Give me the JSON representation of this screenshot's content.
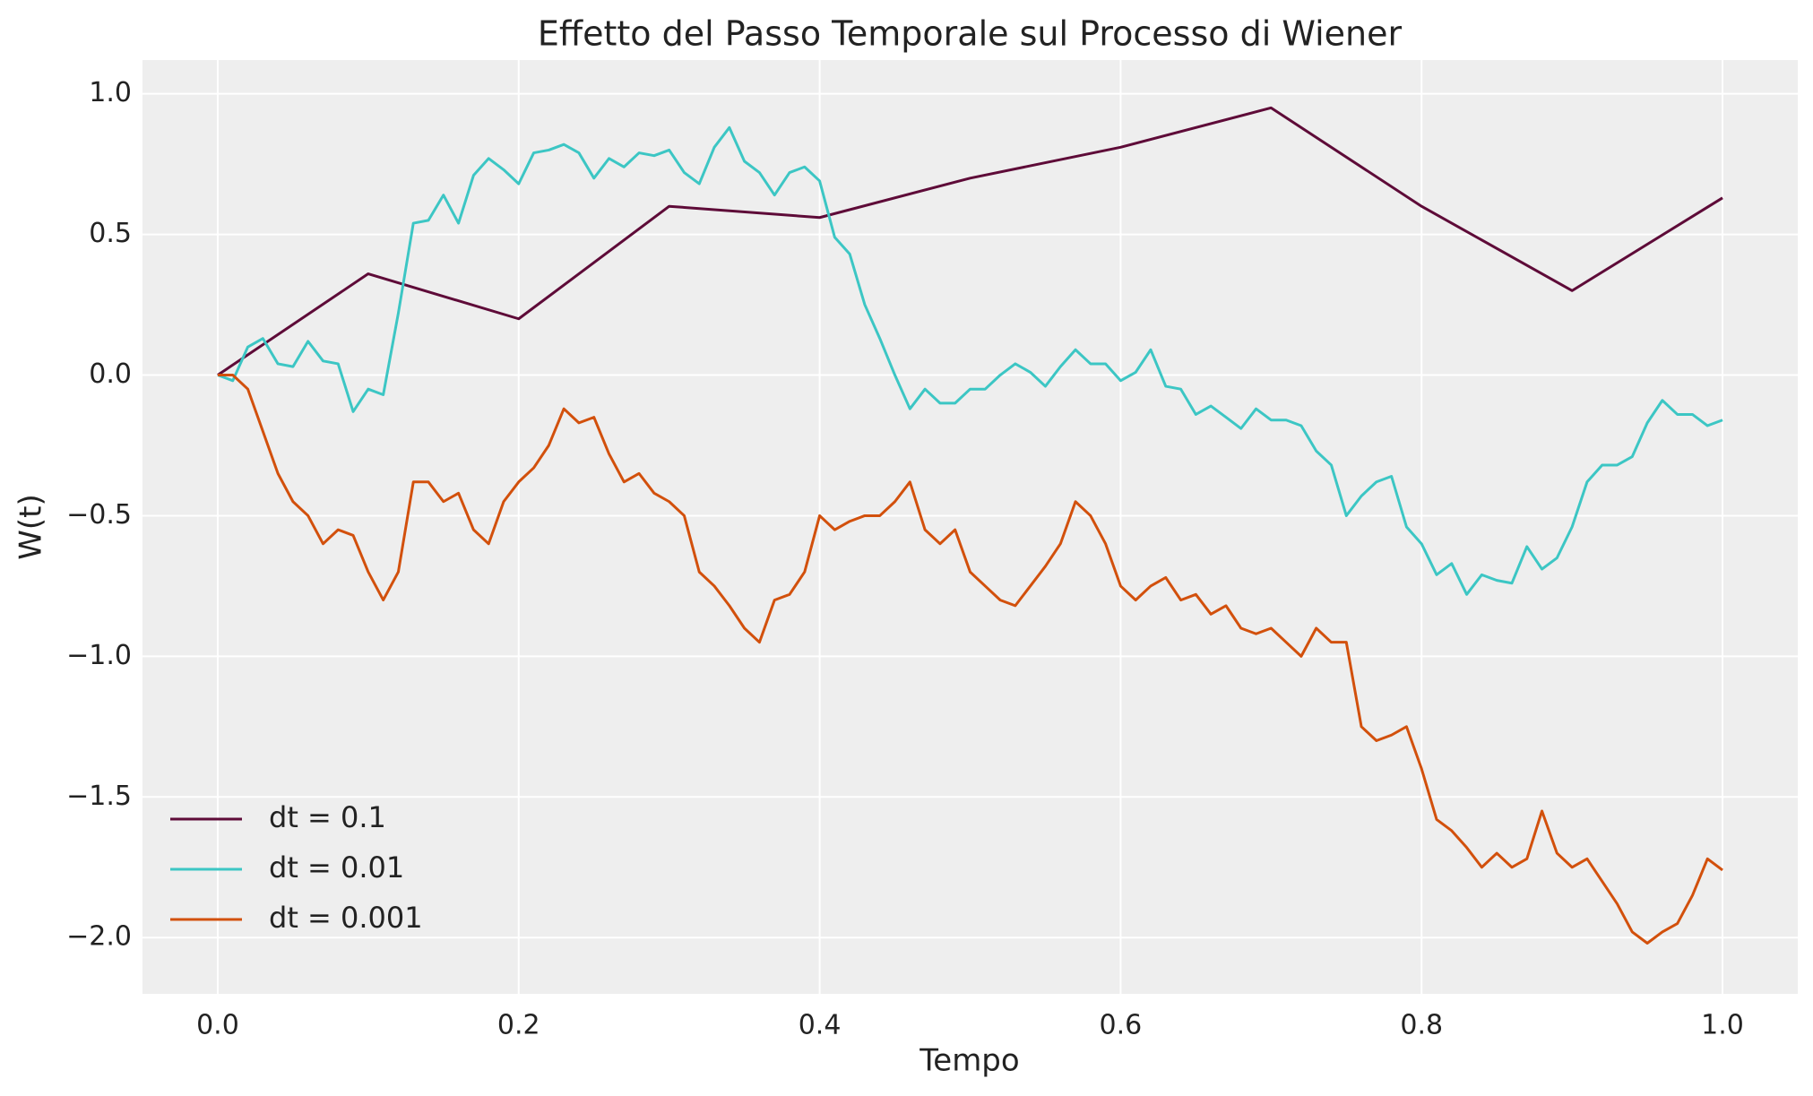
{
  "chart_data": {
    "type": "line",
    "title": "Effetto del Passo Temporale sul Processo di Wiener",
    "x_label": "Tempo",
    "y_label": "W(t)",
    "xlim": [
      -0.05,
      1.05
    ],
    "ylim": [
      -2.2,
      1.12
    ],
    "xticks": [
      {
        "value": 0,
        "label": "0.0"
      },
      0.2,
      0.4,
      0.6,
      0.8,
      {
        "value": 1,
        "label": "1.0"
      }
    ],
    "yticks": [
      {
        "value": 1,
        "label": "1.0"
      },
      0.5,
      {
        "value": 0,
        "label": "0.0"
      },
      {
        "value": -0.5,
        "label": "−0.5"
      },
      {
        "value": -1,
        "label": "−1.0"
      },
      {
        "value": -1.5,
        "label": "−1.5"
      },
      {
        "value": -2,
        "label": "−2.0"
      }
    ],
    "grid": true,
    "legend_position": "lower left",
    "series": [
      {
        "name": "dt = 0.1",
        "color": "#5e0b38",
        "x": [
          0,
          0.1,
          0.2,
          0.3,
          0.4,
          0.5,
          0.6,
          0.7,
          0.8,
          0.9,
          1
        ],
        "values": [
          0,
          0.36,
          0.2,
          0.6,
          0.56,
          0.7,
          0.81,
          0.95,
          0.6,
          0.3,
          0.63
        ]
      },
      {
        "name": "dt = 0.01",
        "color": "#3cc6c4",
        "x": [
          0,
          0.01,
          0.02,
          0.03,
          0.04,
          0.05,
          0.06,
          0.07,
          0.08,
          0.09,
          0.1,
          0.11,
          0.12,
          0.13,
          0.14,
          0.15,
          0.16,
          0.17,
          0.18,
          0.19,
          0.2,
          0.21,
          0.22,
          0.23,
          0.24,
          0.25,
          0.26,
          0.27,
          0.28,
          0.29,
          0.3,
          0.31,
          0.32,
          0.33,
          0.34,
          0.35,
          0.36,
          0.37,
          0.38,
          0.39,
          0.4,
          0.41,
          0.42,
          0.43,
          0.44,
          0.45,
          0.46,
          0.47,
          0.48,
          0.49,
          0.5,
          0.51,
          0.52,
          0.53,
          0.54,
          0.55,
          0.56,
          0.57,
          0.58,
          0.59,
          0.6,
          0.61,
          0.62,
          0.63,
          0.64,
          0.65,
          0.66,
          0.67,
          0.68,
          0.69,
          0.7,
          0.71,
          0.72,
          0.73,
          0.74,
          0.75,
          0.76,
          0.77,
          0.78,
          0.79,
          0.8,
          0.81,
          0.82,
          0.83,
          0.84,
          0.85,
          0.86,
          0.87,
          0.88,
          0.89,
          0.9,
          0.91,
          0.92,
          0.93,
          0.94,
          0.95,
          0.96,
          0.97,
          0.98,
          0.99,
          1
        ],
        "values": [
          0,
          -0.02,
          0.1,
          0.13,
          0.04,
          0.03,
          0.12,
          0.05,
          0.04,
          -0.13,
          -0.05,
          -0.07,
          0.22,
          0.54,
          0.55,
          0.64,
          0.54,
          0.71,
          0.77,
          0.73,
          0.68,
          0.79,
          0.8,
          0.82,
          0.79,
          0.7,
          0.77,
          0.74,
          0.79,
          0.78,
          0.8,
          0.72,
          0.68,
          0.81,
          0.88,
          0.76,
          0.72,
          0.64,
          0.72,
          0.74,
          0.69,
          0.49,
          0.43,
          0.25,
          0.13,
          0,
          -0.12,
          -0.05,
          -0.1,
          -0.1,
          -0.05,
          -0.05,
          0,
          0.04,
          0.01,
          -0.04,
          0.03,
          0.09,
          0.04,
          0.04,
          -0.02,
          0.01,
          0.09,
          -0.04,
          -0.05,
          -0.14,
          -0.11,
          -0.15,
          -0.19,
          -0.12,
          -0.16,
          -0.16,
          -0.18,
          -0.27,
          -0.32,
          -0.5,
          -0.43,
          -0.38,
          -0.36,
          -0.54,
          -0.6,
          -0.71,
          -0.67,
          -0.78,
          -0.71,
          -0.73,
          -0.74,
          -0.61,
          -0.69,
          -0.65,
          -0.54,
          -0.38,
          -0.32,
          -0.32,
          -0.29,
          -0.17,
          -0.09,
          -0.14,
          -0.14,
          -0.18,
          -0.16
        ]
      },
      {
        "name": "dt = 0.001",
        "color": "#d2500c",
        "x": [
          0,
          0.01,
          0.02,
          0.03,
          0.04,
          0.05,
          0.06,
          0.07,
          0.08,
          0.09,
          0.1,
          0.11,
          0.12,
          0.13,
          0.14,
          0.15,
          0.16,
          0.17,
          0.18,
          0.19,
          0.2,
          0.21,
          0.22,
          0.23,
          0.24,
          0.25,
          0.26,
          0.27,
          0.28,
          0.29,
          0.3,
          0.31,
          0.32,
          0.33,
          0.34,
          0.35,
          0.36,
          0.37,
          0.38,
          0.39,
          0.4,
          0.41,
          0.42,
          0.43,
          0.44,
          0.45,
          0.46,
          0.47,
          0.48,
          0.49,
          0.5,
          0.51,
          0.52,
          0.53,
          0.54,
          0.55,
          0.56,
          0.57,
          0.58,
          0.59,
          0.6,
          0.61,
          0.62,
          0.63,
          0.64,
          0.65,
          0.66,
          0.67,
          0.68,
          0.69,
          0.7,
          0.71,
          0.72,
          0.73,
          0.74,
          0.75,
          0.76,
          0.77,
          0.78,
          0.79,
          0.8,
          0.81,
          0.82,
          0.83,
          0.84,
          0.85,
          0.86,
          0.87,
          0.88,
          0.89,
          0.9,
          0.91,
          0.92,
          0.93,
          0.94,
          0.95,
          0.96,
          0.97,
          0.98,
          0.99,
          1
        ],
        "values": [
          0,
          0,
          -0.05,
          -0.2,
          -0.35,
          -0.45,
          -0.5,
          -0.6,
          -0.55,
          -0.57,
          -0.7,
          -0.8,
          -0.7,
          -0.38,
          -0.38,
          -0.45,
          -0.42,
          -0.55,
          -0.6,
          -0.45,
          -0.38,
          -0.33,
          -0.25,
          -0.12,
          -0.17,
          -0.15,
          -0.28,
          -0.38,
          -0.35,
          -0.42,
          -0.45,
          -0.5,
          -0.7,
          -0.75,
          -0.82,
          -0.9,
          -0.95,
          -0.8,
          -0.78,
          -0.7,
          -0.5,
          -0.55,
          -0.52,
          -0.5,
          -0.5,
          -0.45,
          -0.38,
          -0.55,
          -0.6,
          -0.55,
          -0.7,
          -0.75,
          -0.8,
          -0.82,
          -0.75,
          -0.68,
          -0.6,
          -0.45,
          -0.5,
          -0.6,
          -0.75,
          -0.8,
          -0.75,
          -0.72,
          -0.8,
          -0.78,
          -0.85,
          -0.82,
          -0.9,
          -0.92,
          -0.9,
          -0.95,
          -1,
          -0.9,
          -0.95,
          -0.95,
          -1.25,
          -1.3,
          -1.28,
          -1.25,
          -1.4,
          -1.58,
          -1.62,
          -1.68,
          -1.75,
          -1.7,
          -1.75,
          -1.72,
          -1.55,
          -1.7,
          -1.75,
          -1.72,
          -1.8,
          -1.88,
          -1.98,
          -2.02,
          -1.98,
          -1.95,
          -1.85,
          -1.72,
          -1.76
        ]
      }
    ]
  }
}
